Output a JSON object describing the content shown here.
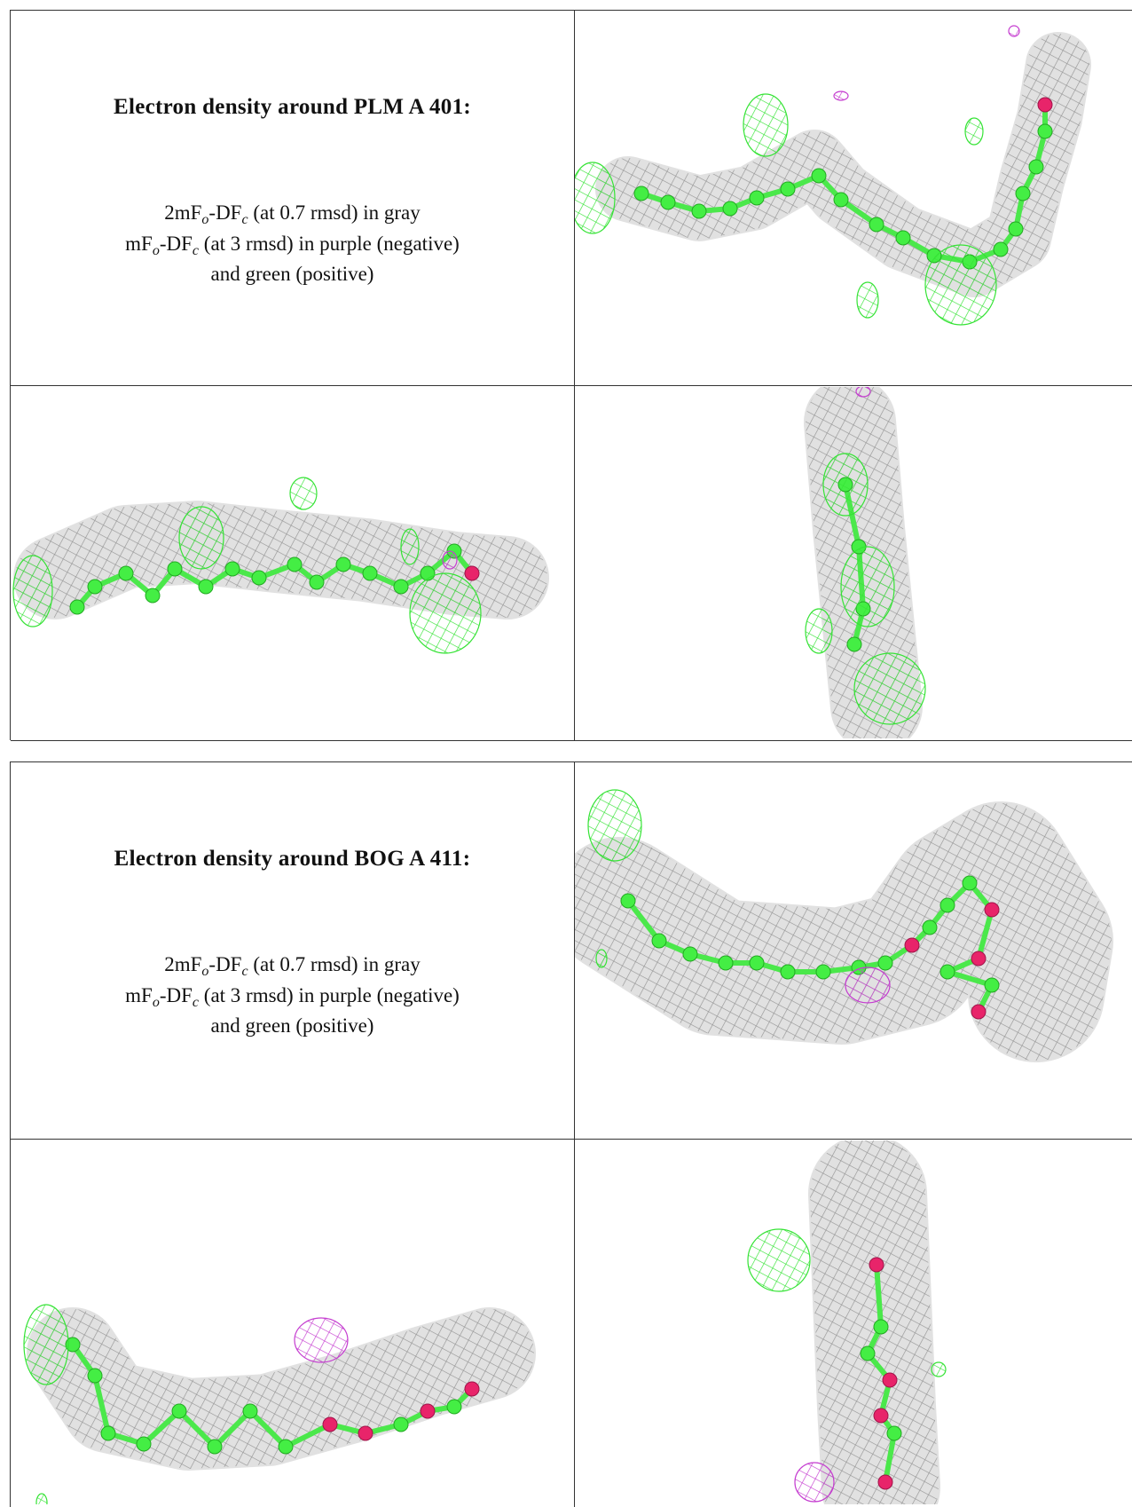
{
  "panels": [
    {
      "title": "Electron density around PLM A 401:",
      "legend": [
        [
          "2mF",
          "o",
          "-DF",
          "c",
          " (at 0.7 rmsd) in gray"
        ],
        [
          "mF",
          "o",
          "-DF",
          "c",
          " (at 3 rmsd) in purple (negative)"
        ],
        [
          "and green (positive)"
        ]
      ]
    },
    {
      "title": "Electron density around BOG A 411:",
      "legend": [
        [
          "2mF",
          "o",
          "-DF",
          "c",
          " (at 0.7 rmsd) in gray"
        ],
        [
          "mF",
          "o",
          "-DF",
          "c",
          " (at 3 rmsd) in purple (negative)"
        ],
        [
          "and green (positive)"
        ]
      ]
    }
  ]
}
